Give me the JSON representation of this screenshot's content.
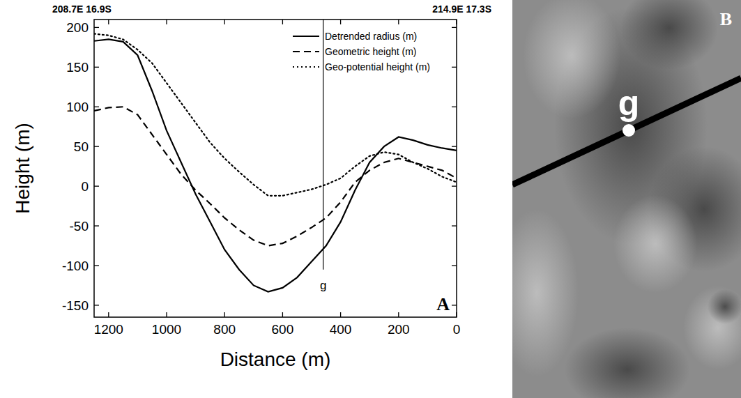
{
  "chart_data": {
    "type": "line",
    "header_left": "208.7E 16.9S",
    "header_right": "214.9E 17.3S",
    "x_label": "Distance (m)",
    "y_label": "Height (m)",
    "panel_label": "A",
    "x": [
      1250,
      1200,
      1150,
      1100,
      1050,
      1000,
      950,
      900,
      850,
      800,
      750,
      700,
      650,
      600,
      550,
      500,
      450,
      400,
      350,
      300,
      250,
      200,
      150,
      100,
      50,
      0
    ],
    "series": [
      {
        "name": "Detrended radius (m)",
        "color": "#000000",
        "line_style": "solid",
        "values": [
          183,
          185,
          182,
          165,
          120,
          70,
          30,
          -10,
          -45,
          -80,
          -105,
          -125,
          -133,
          -128,
          -115,
          -95,
          -75,
          -45,
          -5,
          30,
          50,
          62,
          58,
          52,
          48,
          45
        ]
      },
      {
        "name": "Geometric height (m)",
        "color": "#000000",
        "line_style": "dashed",
        "values": [
          95,
          99,
          100,
          90,
          65,
          40,
          15,
          -5,
          -22,
          -40,
          -55,
          -68,
          -75,
          -72,
          -63,
          -52,
          -40,
          -20,
          5,
          20,
          30,
          35,
          30,
          25,
          20,
          10
        ]
      },
      {
        "name": "Geo-potential height (m)",
        "color": "#000000",
        "line_style": "dotted",
        "values": [
          192,
          190,
          185,
          172,
          155,
          130,
          105,
          80,
          55,
          35,
          18,
          2,
          -12,
          -12,
          -8,
          -4,
          2,
          10,
          25,
          38,
          43,
          40,
          30,
          22,
          12,
          5
        ]
      }
    ],
    "annotations": [
      {
        "text": "g",
        "x": 460
      }
    ],
    "xlim": [
      1250,
      0
    ],
    "ylim": [
      -165,
      210
    ],
    "xticks": [
      1200,
      1000,
      800,
      600,
      400,
      200,
      0
    ],
    "yticks": [
      -150,
      -100,
      -50,
      0,
      50,
      100,
      150,
      200
    ],
    "legend": "upper right",
    "grid": false
  },
  "image_panel": {
    "label": "B",
    "marker_label": "g"
  }
}
